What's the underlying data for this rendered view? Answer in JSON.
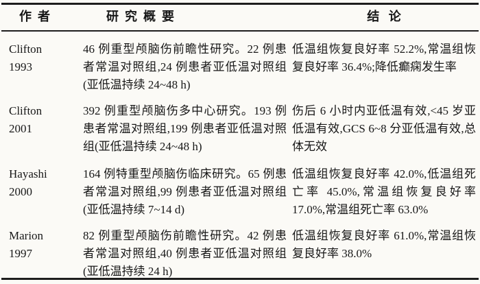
{
  "page": {
    "background": "#fbfaf6",
    "rule_color": "#1d1d1d",
    "text_color": "#171717"
  },
  "table": {
    "headers": {
      "author": "作  者",
      "summary": "研  究  概  要",
      "conclusion": "结   论"
    },
    "rows": [
      {
        "author": "Clifton",
        "year": "1993",
        "summary": "46 例重型颅脑伤前瞻性研究。22 例患者常温对照组,24 例患者亚低温对照组(亚低温持续 24~48 h)",
        "conclusion": "低温组恢复良好率 52.2%,常温组恢复良好率 36.4%;降低癫痫发生率"
      },
      {
        "author": "Clifton",
        "year": "2001",
        "summary": "392 例重型颅脑伤多中心研究。193 例患者常温对照组,199 例患者亚低温对照组(亚低温持续 24~48 h)",
        "conclusion": "伤后 6 小时内亚低温有效,<45 岁亚低温有效,GCS 6~8 分亚低温有效,总体无效"
      },
      {
        "author": "Hayashi",
        "year": "2000",
        "summary": "164 例特重型颅脑伤临床研究。65 例患者常温对照组,99 例患者亚低温对照组(亚低温持续 7~14 d)",
        "conclusion": "低温组恢复良好率 42.0%,低温组死亡率 45.0%,常温组恢复良好率 17.0%,常温组死亡率 63.0%"
      },
      {
        "author": "Marion",
        "year": "1997",
        "summary": "82 例重型颅脑伤前瞻性研究。42 例患者常温对照组,40 例患者亚低温对照组(亚低温持续 24 h)",
        "conclusion": "低温组恢复良好率 61.0%,常温组恢复良好率 38.0%"
      }
    ]
  }
}
